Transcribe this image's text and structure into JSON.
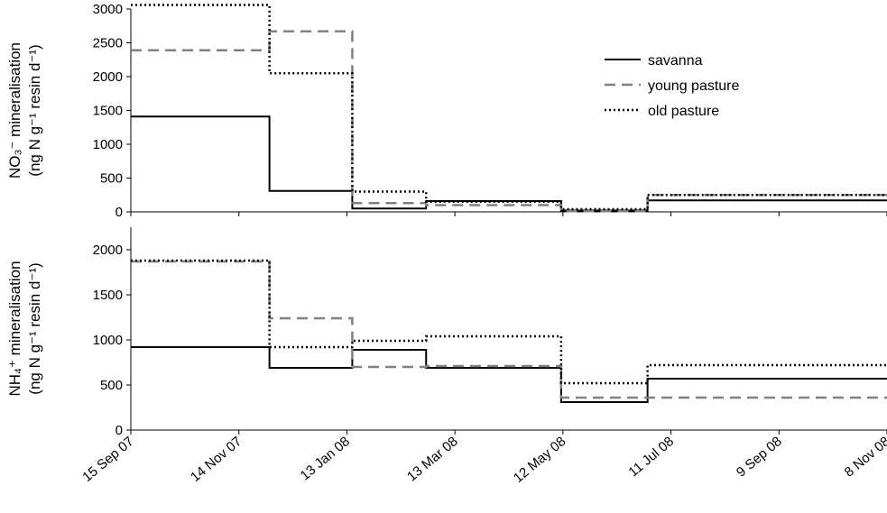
{
  "chart_data": [
    {
      "type": "line",
      "step": true,
      "ylabel_line1": "NO₃⁻ mineralisation",
      "ylabel_line2": "(ng N g⁻¹ resin d⁻¹)",
      "ylim": [
        0,
        3000
      ],
      "yticks": [
        0,
        500,
        1000,
        1500,
        2000,
        2500,
        3000
      ],
      "xlim": [
        "2007-09-15",
        "2008-11-08"
      ],
      "legend": {
        "position": "top-right"
      },
      "series": [
        {
          "name": "savanna",
          "color": "#000000",
          "style": "solid",
          "points": [
            [
              "2007-09-15",
              1410
            ],
            [
              "2007-12-01",
              310
            ],
            [
              "2008-01-16",
              50
            ],
            [
              "2008-02-26",
              160
            ],
            [
              "2008-05-11",
              20
            ],
            [
              "2008-06-28",
              170
            ],
            [
              "2008-11-08",
              170
            ]
          ]
        },
        {
          "name": "young pasture",
          "color": "#808080",
          "style": "dashed",
          "points": [
            [
              "2007-09-15",
              2390
            ],
            [
              "2007-12-01",
              2670
            ],
            [
              "2008-01-16",
              130
            ],
            [
              "2008-02-26",
              100
            ],
            [
              "2008-05-11",
              10
            ],
            [
              "2008-06-28",
              250
            ],
            [
              "2008-11-08",
              250
            ]
          ]
        },
        {
          "name": "old pasture",
          "color": "#000000",
          "style": "dotted",
          "points": [
            [
              "2007-09-15",
              3060
            ],
            [
              "2007-12-01",
              2050
            ],
            [
              "2008-01-16",
              300
            ],
            [
              "2008-02-26",
              150
            ],
            [
              "2008-05-11",
              40
            ],
            [
              "2008-06-28",
              250
            ],
            [
              "2008-11-08",
              250
            ]
          ]
        }
      ]
    },
    {
      "type": "line",
      "step": true,
      "ylabel_line1": "NH₄⁺ mineralisation",
      "ylabel_line2": "(ng N g⁻¹ resin d⁻¹)",
      "ylim": [
        0,
        2250
      ],
      "yticks": [
        0,
        500,
        1000,
        1500,
        2000
      ],
      "xlim": [
        "2007-09-15",
        "2008-11-08"
      ],
      "xticks": [
        "15 Sep 07",
        "14 Nov 07",
        "13 Jan 08",
        "13 Mar 08",
        "12 May 08",
        "11 Jul 08",
        "9 Sep 08",
        "8 Nov 08"
      ],
      "series": [
        {
          "name": "savanna",
          "color": "#000000",
          "style": "solid",
          "points": [
            [
              "2007-09-15",
              920
            ],
            [
              "2007-12-01",
              690
            ],
            [
              "2008-01-16",
              890
            ],
            [
              "2008-02-26",
              690
            ],
            [
              "2008-05-11",
              310
            ],
            [
              "2008-06-28",
              570
            ],
            [
              "2008-11-08",
              570
            ]
          ]
        },
        {
          "name": "young pasture",
          "color": "#808080",
          "style": "dashed",
          "points": [
            [
              "2007-09-15",
              1870
            ],
            [
              "2007-12-01",
              1240
            ],
            [
              "2008-01-16",
              700
            ],
            [
              "2008-02-26",
              710
            ],
            [
              "2008-05-11",
              360
            ],
            [
              "2008-06-28",
              360
            ],
            [
              "2008-11-08",
              360
            ]
          ]
        },
        {
          "name": "old pasture",
          "color": "#000000",
          "style": "dotted",
          "points": [
            [
              "2007-09-15",
              1880
            ],
            [
              "2007-12-01",
              920
            ],
            [
              "2008-01-16",
              990
            ],
            [
              "2008-02-26",
              1040
            ],
            [
              "2008-05-11",
              520
            ],
            [
              "2008-06-28",
              720
            ],
            [
              "2008-11-08",
              720
            ]
          ]
        }
      ]
    }
  ]
}
